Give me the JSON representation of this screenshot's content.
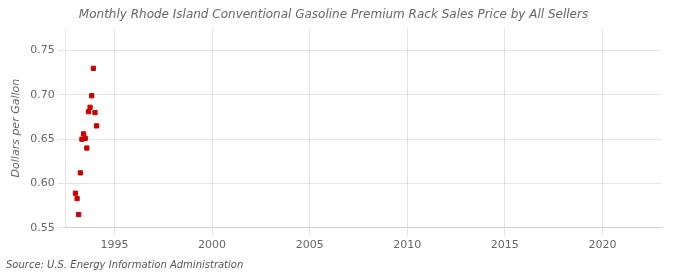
{
  "chart_data": {
    "type": "scatter",
    "title": "Monthly Rhode Island Conventional Gasoline Premium Rack Sales Price by All Sellers",
    "ylabel": "Dollars per Gallon",
    "annotation": "Source: U.S. Energy Information Administration",
    "x": [
      1993.0,
      1993.083,
      1993.167,
      1993.25,
      1993.333,
      1993.417,
      1993.5,
      1993.583,
      1993.667,
      1993.75,
      1993.833,
      1993.917,
      1994.0,
      1994.083
    ],
    "values": [
      0.589,
      0.583,
      0.565,
      0.612,
      0.65,
      0.656,
      0.651,
      0.64,
      0.681,
      0.686,
      0.699,
      0.73,
      0.68,
      0.665
    ],
    "color": "#cc0000",
    "marker": "square",
    "grid": true,
    "xlim": [
      1992.5,
      2023
    ],
    "ylim": [
      0.55,
      0.775
    ],
    "xticks": [
      1995,
      2000,
      2005,
      2010,
      2015,
      2020
    ],
    "yticks": [
      0.55,
      {
        "value": 0.6,
        "label": "0.60"
      },
      0.65,
      {
        "value": 0.7,
        "label": "0.70"
      },
      0.75
    ]
  }
}
